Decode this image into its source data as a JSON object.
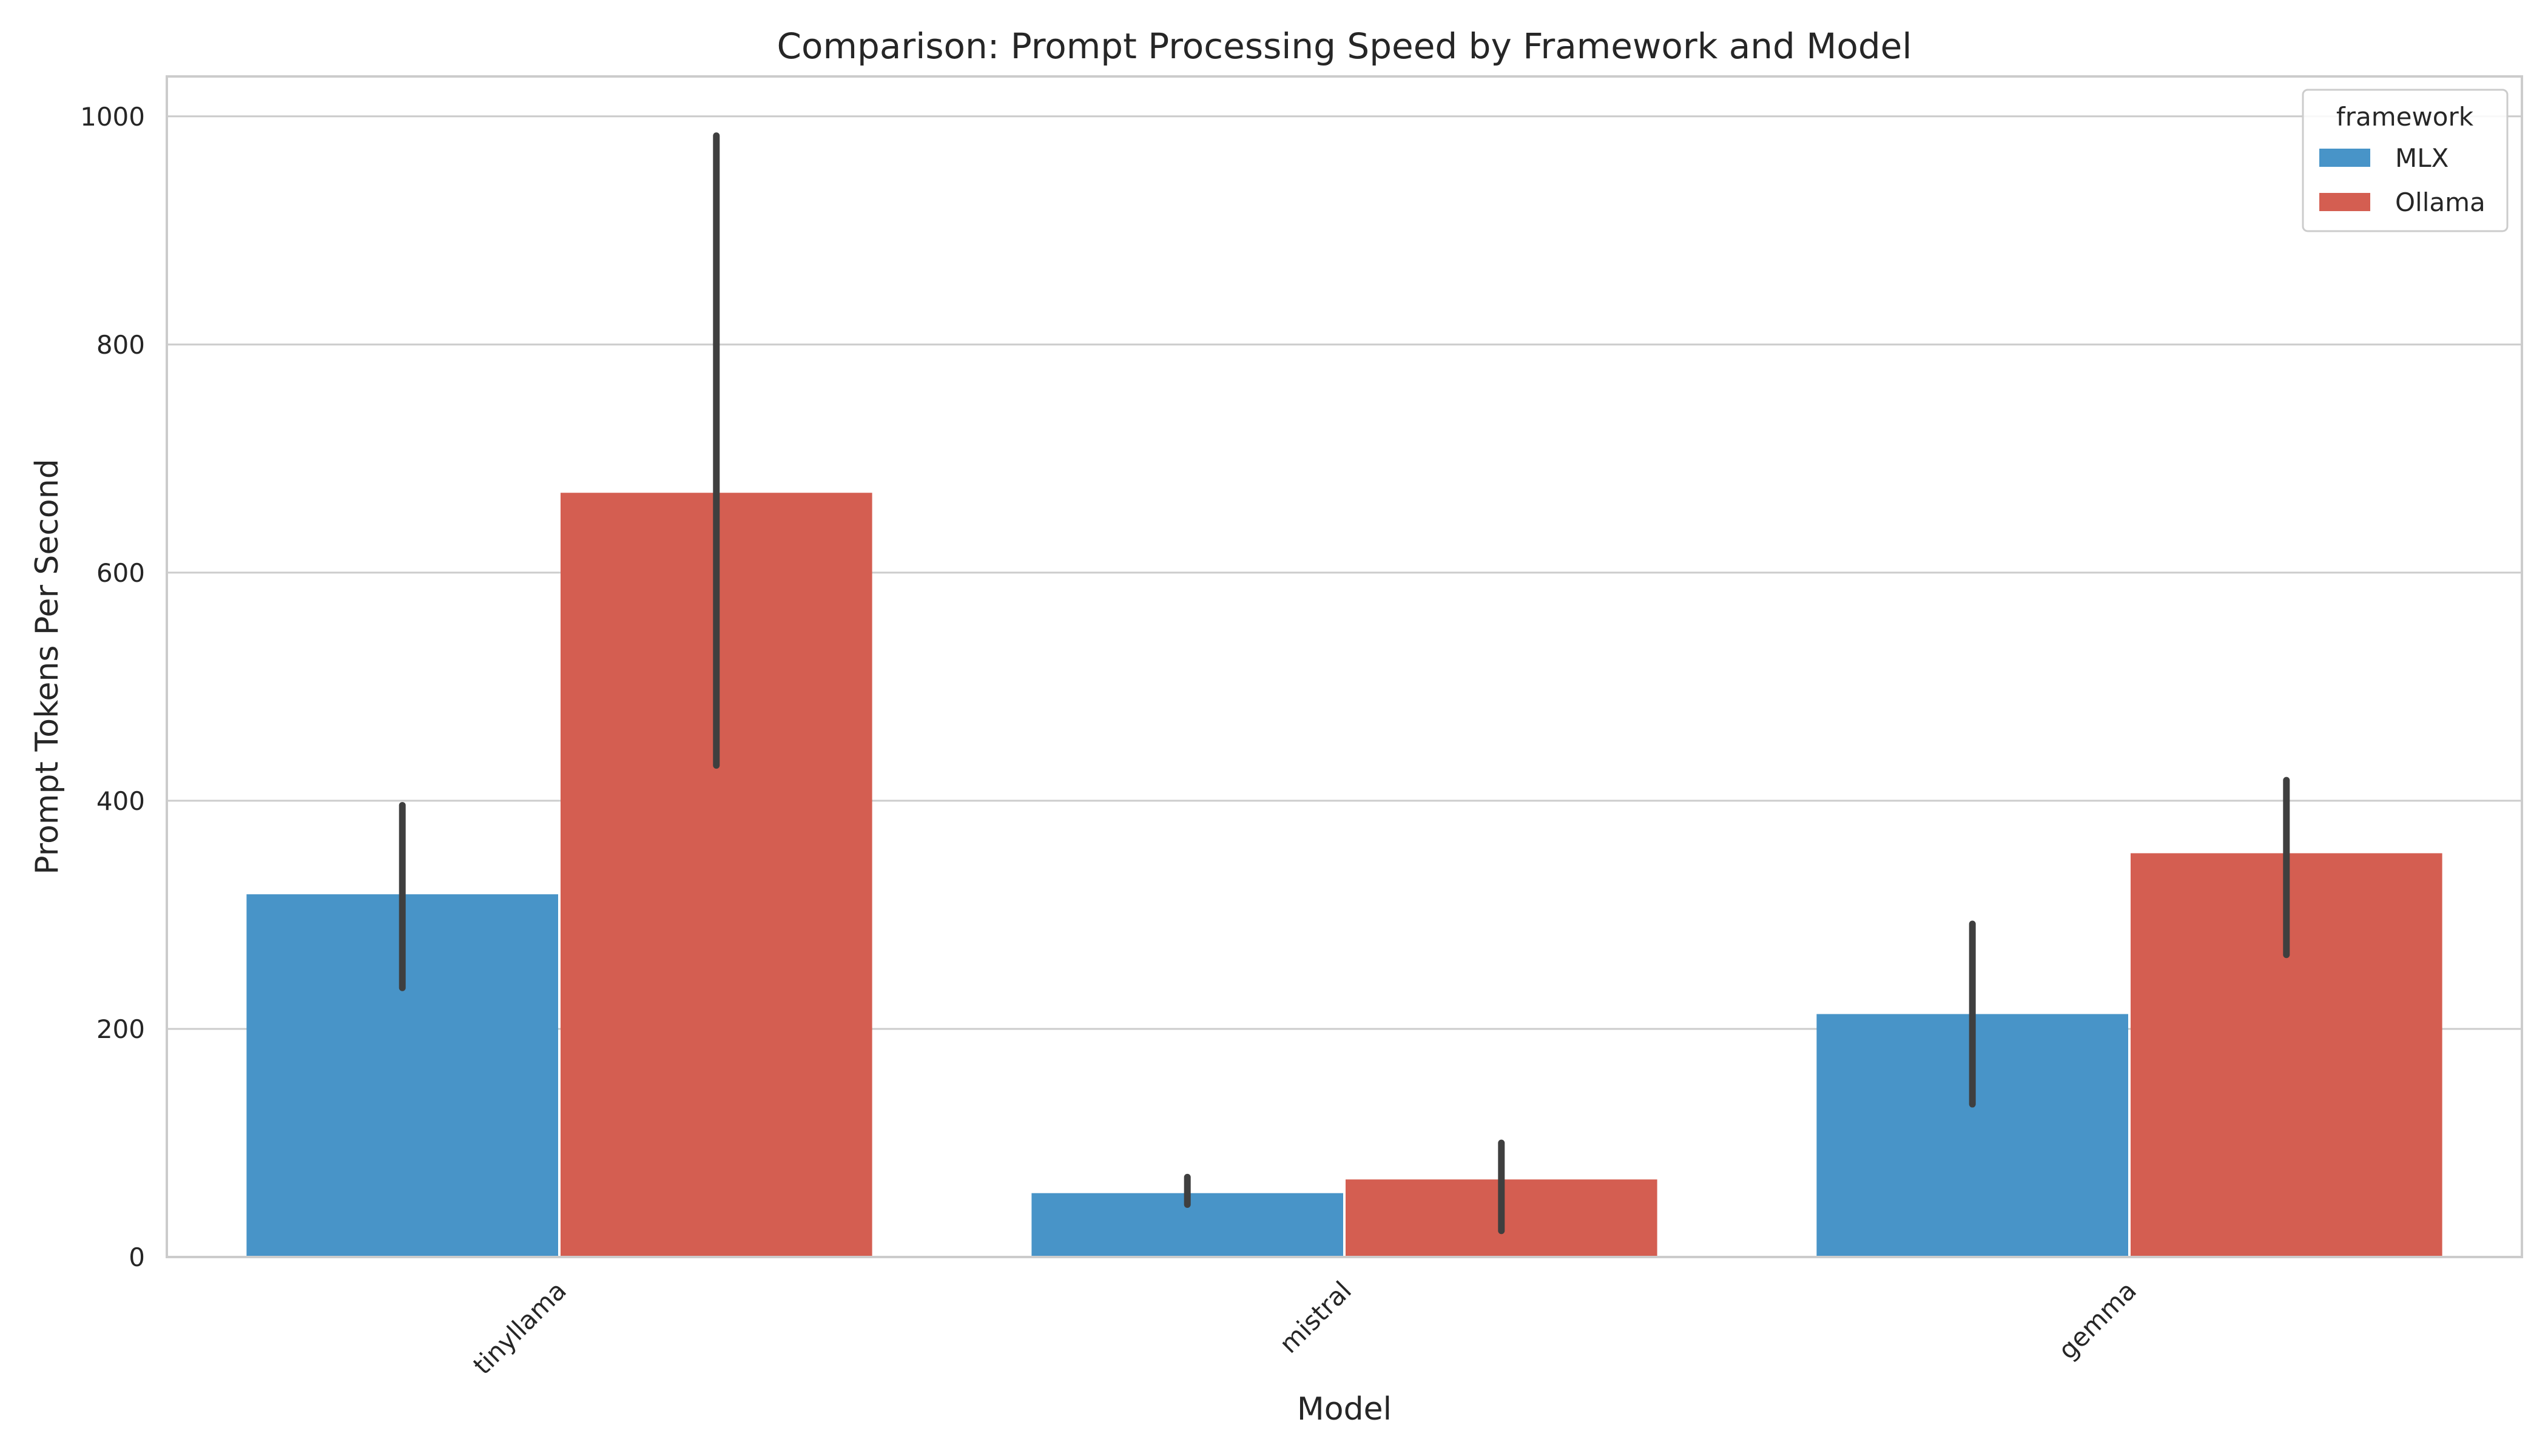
{
  "chart_data": {
    "type": "bar",
    "title": "Comparison: Prompt Processing Speed by Framework and Model",
    "xlabel": "Model",
    "ylabel": "Prompt Tokens Per Second",
    "categories": [
      "tinyllama",
      "mistral",
      "gemma"
    ],
    "yticks": [
      "0",
      "200",
      "400",
      "600",
      "800",
      "1000"
    ],
    "ylim": [
      0,
      1035
    ],
    "grid": true,
    "legend": {
      "title": "framework",
      "placement": "top-right"
    },
    "series": [
      {
        "name": "MLX",
        "color": "#4894c8",
        "values": [
          318,
          56,
          213
        ],
        "error_low": [
          236,
          46,
          134
        ],
        "error_high": [
          396,
          70,
          292
        ]
      },
      {
        "name": "Ollama",
        "color": "#d45e51",
        "values": [
          670,
          68,
          354
        ],
        "error_low": [
          431,
          23,
          265
        ],
        "error_high": [
          983,
          100,
          418
        ]
      }
    ]
  }
}
